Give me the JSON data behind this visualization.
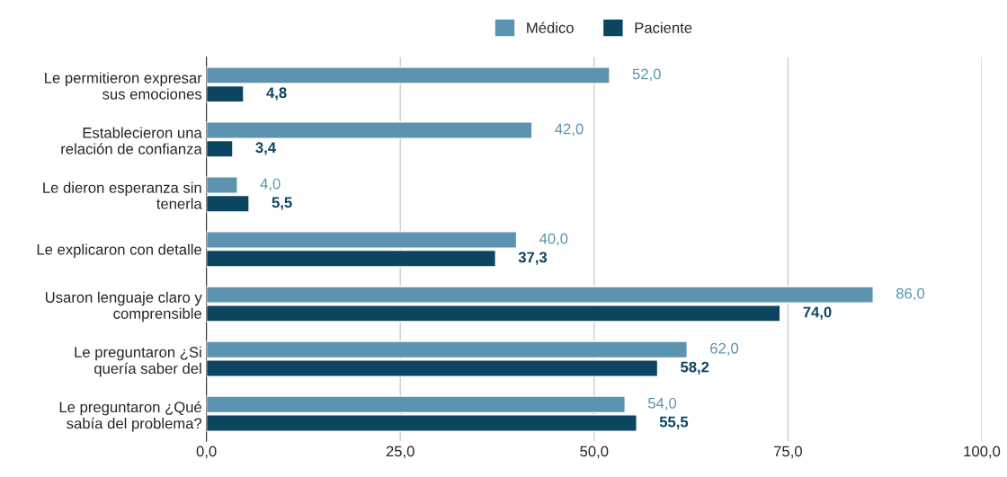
{
  "chart_data": {
    "type": "bar",
    "orientation": "horizontal",
    "categories": [
      "Le permitieron expresar\nsus emociones",
      "Establecieron una\nrelación de confianza",
      "Le dieron esperanza sin\ntenerla",
      "Le explicaron con detalle",
      "Usaron lenguaje claro y\ncomprensible",
      "Le preguntaron ¿Si\nquería saber del",
      "Le preguntaron ¿Qué\nsabía del problema?"
    ],
    "series": [
      {
        "name": "Médico",
        "color": "#5b93b0",
        "values": [
          52.0,
          42.0,
          4.0,
          40.0,
          86.0,
          62.0,
          54.0
        ],
        "value_labels": [
          "52,0",
          "42,0",
          "4,0",
          "40,0",
          "86,0",
          "62,0",
          "54,0"
        ]
      },
      {
        "name": "Paciente",
        "color": "#0b4560",
        "values": [
          4.8,
          3.4,
          5.5,
          37.3,
          74.0,
          58.2,
          55.5
        ],
        "value_labels": [
          "4,8",
          "3,4",
          "5,5",
          "37,3",
          "74,0",
          "58,2",
          "55,5"
        ]
      }
    ],
    "xlim": [
      0,
      100
    ],
    "xticks": [
      {
        "value": 0,
        "label": "0,0"
      },
      {
        "value": 25,
        "label": "25,0"
      },
      {
        "value": 50,
        "label": "50,0"
      },
      {
        "value": 75,
        "label": "75,0"
      },
      {
        "value": 100,
        "label": "100,0"
      }
    ],
    "grid": "x",
    "legend": "top"
  }
}
